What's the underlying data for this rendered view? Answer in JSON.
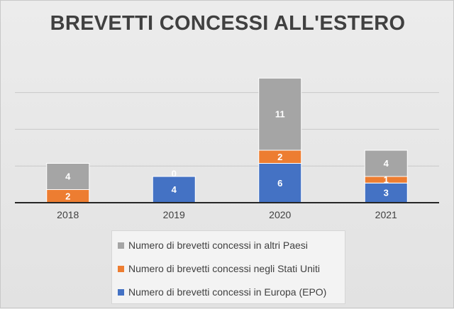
{
  "chart_data": {
    "type": "bar",
    "stacked": true,
    "title": "BREVETTI CONCESSI ALL'ESTERO",
    "categories": [
      "2018",
      "2019",
      "2020",
      "2021"
    ],
    "series": [
      {
        "name": "Numero di brevetti concessi in Europa (EPO)",
        "values": [
          0,
          4,
          6,
          3
        ],
        "labels": [
          "",
          "4",
          "6",
          "3"
        ],
        "color": "#4472C4"
      },
      {
        "name": "Numero di brevetti concessi negli Stati Uniti",
        "values": [
          2,
          0,
          2,
          1
        ],
        "labels": [
          "2",
          "0",
          "2",
          "1"
        ],
        "color": "#ED7D31"
      },
      {
        "name": "Numero di brevetti concessi in altri Paesi",
        "values": [
          4,
          0,
          11,
          4
        ],
        "labels": [
          "4",
          "",
          "11",
          "4"
        ],
        "color": "#A5A5A5"
      }
    ],
    "ylim": [
      0,
      20
    ],
    "gridlines": true,
    "legend_position": "bottom",
    "legend_order": [
      2,
      1,
      0
    ]
  }
}
